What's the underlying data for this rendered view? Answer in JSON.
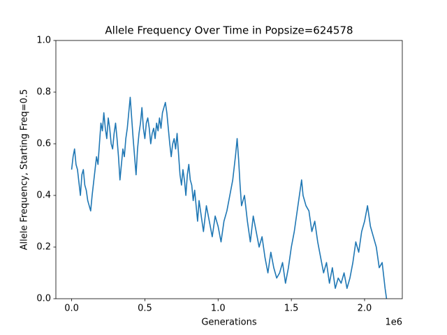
{
  "chart_data": {
    "type": "line",
    "title": "Allele Frequency Over Time in Popsize=624578",
    "x_label": "Generations",
    "y_label": "Allele Frequency, Starting Freq=0.5",
    "x_offset_label": "1e6",
    "xlim": [
      -107500,
      2257500
    ],
    "ylim": [
      0,
      1
    ],
    "xticks": [
      {
        "value": 0,
        "label": "0.0"
      },
      {
        "value": 500000,
        "label": "0.5"
      },
      {
        "value": 1000000,
        "label": "1.0"
      },
      {
        "value": 1500000,
        "label": "1.5"
      },
      {
        "value": 2000000,
        "label": "2.0"
      }
    ],
    "yticks": [
      {
        "value": 0,
        "label": "0.0"
      },
      0.2,
      0.4,
      0.6,
      0.8,
      {
        "value": 1,
        "label": "1.0"
      }
    ],
    "grid": false,
    "series": [
      {
        "color": "#1f77b4",
        "x": [
          0,
          10000,
          20000,
          30000,
          40000,
          50000,
          60000,
          70000,
          80000,
          90000,
          100000,
          110000,
          120000,
          130000,
          140000,
          150000,
          160000,
          170000,
          180000,
          190000,
          200000,
          210000,
          220000,
          230000,
          240000,
          250000,
          260000,
          270000,
          280000,
          290000,
          300000,
          310000,
          320000,
          330000,
          340000,
          350000,
          360000,
          370000,
          380000,
          390000,
          400000,
          410000,
          420000,
          430000,
          440000,
          450000,
          460000,
          470000,
          480000,
          490000,
          500000,
          510000,
          520000,
          530000,
          540000,
          550000,
          560000,
          570000,
          580000,
          590000,
          600000,
          610000,
          620000,
          630000,
          640000,
          650000,
          660000,
          670000,
          680000,
          690000,
          700000,
          710000,
          720000,
          730000,
          740000,
          750000,
          760000,
          770000,
          780000,
          790000,
          800000,
          810000,
          820000,
          830000,
          840000,
          850000,
          860000,
          870000,
          880000,
          890000,
          900000,
          920000,
          940000,
          960000,
          980000,
          1000000,
          1020000,
          1040000,
          1060000,
          1080000,
          1100000,
          1120000,
          1130000,
          1140000,
          1150000,
          1160000,
          1180000,
          1200000,
          1220000,
          1240000,
          1260000,
          1280000,
          1300000,
          1320000,
          1340000,
          1360000,
          1380000,
          1400000,
          1420000,
          1440000,
          1460000,
          1480000,
          1500000,
          1520000,
          1540000,
          1560000,
          1570000,
          1580000,
          1600000,
          1620000,
          1640000,
          1660000,
          1680000,
          1700000,
          1720000,
          1740000,
          1760000,
          1780000,
          1800000,
          1820000,
          1840000,
          1860000,
          1880000,
          1900000,
          1920000,
          1940000,
          1960000,
          1980000,
          2000000,
          2020000,
          2040000,
          2060000,
          2080000,
          2100000,
          2120000,
          2140000,
          2150000
        ],
        "values": [
          0.5,
          0.55,
          0.58,
          0.52,
          0.5,
          0.45,
          0.4,
          0.48,
          0.5,
          0.44,
          0.42,
          0.38,
          0.36,
          0.34,
          0.4,
          0.45,
          0.5,
          0.55,
          0.52,
          0.6,
          0.68,
          0.65,
          0.72,
          0.66,
          0.62,
          0.7,
          0.66,
          0.6,
          0.58,
          0.64,
          0.68,
          0.62,
          0.55,
          0.46,
          0.52,
          0.58,
          0.55,
          0.62,
          0.66,
          0.72,
          0.78,
          0.7,
          0.62,
          0.55,
          0.48,
          0.58,
          0.64,
          0.68,
          0.74,
          0.66,
          0.62,
          0.68,
          0.7,
          0.66,
          0.6,
          0.64,
          0.66,
          0.62,
          0.68,
          0.65,
          0.7,
          0.66,
          0.72,
          0.74,
          0.76,
          0.72,
          0.66,
          0.6,
          0.55,
          0.6,
          0.62,
          0.58,
          0.64,
          0.56,
          0.48,
          0.44,
          0.5,
          0.46,
          0.4,
          0.48,
          0.52,
          0.46,
          0.44,
          0.38,
          0.42,
          0.36,
          0.3,
          0.38,
          0.34,
          0.3,
          0.26,
          0.36,
          0.3,
          0.24,
          0.32,
          0.28,
          0.22,
          0.3,
          0.34,
          0.4,
          0.46,
          0.56,
          0.62,
          0.54,
          0.44,
          0.36,
          0.4,
          0.3,
          0.22,
          0.32,
          0.26,
          0.2,
          0.24,
          0.16,
          0.1,
          0.18,
          0.12,
          0.08,
          0.1,
          0.14,
          0.06,
          0.12,
          0.2,
          0.26,
          0.34,
          0.42,
          0.46,
          0.4,
          0.36,
          0.34,
          0.26,
          0.3,
          0.22,
          0.16,
          0.1,
          0.14,
          0.06,
          0.12,
          0.04,
          0.08,
          0.06,
          0.1,
          0.04,
          0.08,
          0.14,
          0.22,
          0.18,
          0.26,
          0.3,
          0.36,
          0.28,
          0.24,
          0.2,
          0.12,
          0.14,
          0.04,
          0
        ]
      }
    ]
  }
}
